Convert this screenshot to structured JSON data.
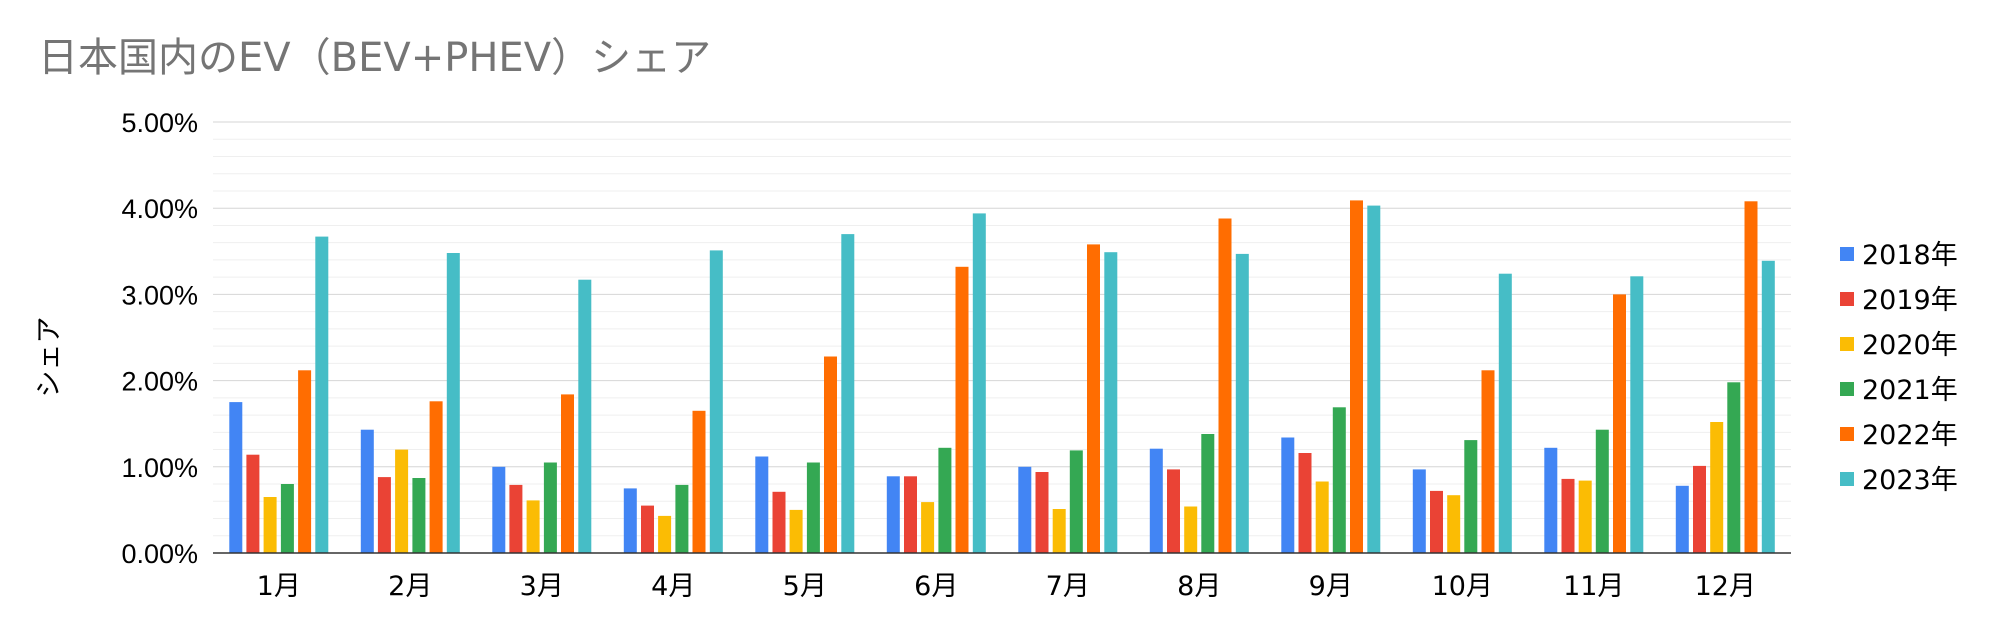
{
  "chart_data": {
    "type": "bar",
    "title": "日本国内のEV（BEV+PHEV）シェア",
    "xlabel": "",
    "ylabel": "シェア",
    "ylim": [
      0,
      5
    ],
    "y_unit": "%",
    "y_ticks": [
      0,
      1,
      2,
      3,
      4,
      5
    ],
    "y_tick_labels": [
      "0.00%",
      "1.00%",
      "2.00%",
      "3.00%",
      "4.00%",
      "5.00%"
    ],
    "grid": true,
    "legend_position": "right",
    "categories": [
      "1月",
      "2月",
      "3月",
      "4月",
      "5月",
      "6月",
      "7月",
      "8月",
      "9月",
      "10月",
      "11月",
      "12月"
    ],
    "series": [
      {
        "name": "2018年",
        "color": "#4285f4",
        "values": [
          1.75,
          1.43,
          1.0,
          0.75,
          1.12,
          0.89,
          1.0,
          1.21,
          1.34,
          0.97,
          1.22,
          0.78
        ]
      },
      {
        "name": "2019年",
        "color": "#ea4335",
        "values": [
          1.14,
          0.88,
          0.79,
          0.55,
          0.71,
          0.89,
          0.94,
          0.97,
          1.16,
          0.72,
          0.86,
          1.01
        ]
      },
      {
        "name": "2020年",
        "color": "#fbbc04",
        "values": [
          0.65,
          1.2,
          0.61,
          0.43,
          0.5,
          0.59,
          0.51,
          0.54,
          0.83,
          0.67,
          0.84,
          1.52
        ]
      },
      {
        "name": "2021年",
        "color": "#34a853",
        "values": [
          0.8,
          0.87,
          1.05,
          0.79,
          1.05,
          1.22,
          1.19,
          1.38,
          1.69,
          1.31,
          1.43,
          1.98
        ]
      },
      {
        "name": "2022年",
        "color": "#ff6d01",
        "values": [
          2.12,
          1.76,
          1.84,
          1.65,
          2.28,
          3.32,
          3.58,
          3.88,
          4.09,
          2.12,
          3.0,
          4.08
        ]
      },
      {
        "name": "2023年",
        "color": "#46bdc6",
        "values": [
          3.67,
          3.48,
          3.17,
          3.51,
          3.7,
          3.94,
          3.49,
          3.47,
          4.03,
          3.24,
          3.21,
          3.39
        ]
      }
    ]
  }
}
